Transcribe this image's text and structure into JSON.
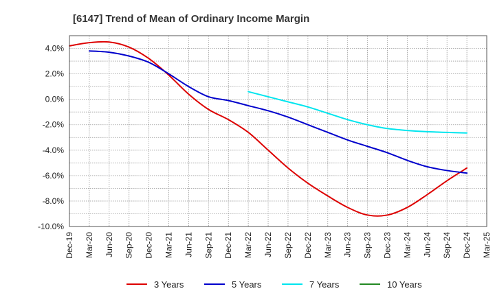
{
  "chart_data": {
    "type": "line",
    "title": "[6147]  Trend of Mean of Ordinary Income Margin",
    "xlabel": "",
    "ylabel": "",
    "x_ticks": [
      "Dec-19",
      "Mar-20",
      "Jun-20",
      "Sep-20",
      "Dec-20",
      "Mar-21",
      "Jun-21",
      "Sep-21",
      "Dec-21",
      "Mar-22",
      "Jun-22",
      "Sep-22",
      "Dec-22",
      "Mar-23",
      "Jun-23",
      "Sep-23",
      "Dec-23",
      "Mar-24",
      "Jun-24",
      "Sep-24",
      "Dec-24",
      "Mar-25"
    ],
    "y_ticks": [
      "4.0%",
      "2.0%",
      "0.0%",
      "-2.0%",
      "-4.0%",
      "-6.0%",
      "-8.0%",
      "-10.0%"
    ],
    "y_tick_values": [
      4,
      2,
      0,
      -2,
      -4,
      -6,
      -8,
      -10
    ],
    "ylim": [
      -10,
      5
    ],
    "grid": true,
    "legend_position": "bottom",
    "series": [
      {
        "name": "3 Years",
        "color": "#dd0000",
        "points": [
          [
            "Dec-19",
            4.2
          ],
          [
            "Mar-20",
            4.45
          ],
          [
            "Jun-20",
            4.5
          ],
          [
            "Sep-20",
            4.1
          ],
          [
            "Dec-20",
            3.2
          ],
          [
            "Mar-21",
            1.9
          ],
          [
            "Jun-21",
            0.4
          ],
          [
            "Sep-21",
            -0.8
          ],
          [
            "Dec-21",
            -1.6
          ],
          [
            "Mar-22",
            -2.6
          ],
          [
            "Jun-22",
            -4.0
          ],
          [
            "Sep-22",
            -5.4
          ],
          [
            "Dec-22",
            -6.6
          ],
          [
            "Mar-23",
            -7.6
          ],
          [
            "Jun-23",
            -8.5
          ],
          [
            "Sep-23",
            -9.1
          ],
          [
            "Dec-23",
            -9.1
          ],
          [
            "Mar-24",
            -8.5
          ],
          [
            "Jun-24",
            -7.5
          ],
          [
            "Sep-24",
            -6.4
          ],
          [
            "Dec-24",
            -5.4
          ]
        ]
      },
      {
        "name": "5 Years",
        "color": "#0000cc",
        "points": [
          [
            "Mar-20",
            3.8
          ],
          [
            "Jun-20",
            3.7
          ],
          [
            "Sep-20",
            3.4
          ],
          [
            "Dec-20",
            2.9
          ],
          [
            "Mar-21",
            2.0
          ],
          [
            "Jun-21",
            1.0
          ],
          [
            "Sep-21",
            0.2
          ],
          [
            "Dec-21",
            -0.1
          ],
          [
            "Mar-22",
            -0.5
          ],
          [
            "Jun-22",
            -0.9
          ],
          [
            "Sep-22",
            -1.4
          ],
          [
            "Dec-22",
            -2.0
          ],
          [
            "Mar-23",
            -2.6
          ],
          [
            "Jun-23",
            -3.2
          ],
          [
            "Sep-23",
            -3.7
          ],
          [
            "Dec-23",
            -4.2
          ],
          [
            "Mar-24",
            -4.8
          ],
          [
            "Jun-24",
            -5.3
          ],
          [
            "Sep-24",
            -5.6
          ],
          [
            "Dec-24",
            -5.8
          ]
        ]
      },
      {
        "name": "7 Years",
        "color": "#00e5ee",
        "points": [
          [
            "Mar-22",
            0.6
          ],
          [
            "Jun-22",
            0.2
          ],
          [
            "Sep-22",
            -0.2
          ],
          [
            "Dec-22",
            -0.6
          ],
          [
            "Mar-23",
            -1.1
          ],
          [
            "Jun-23",
            -1.6
          ],
          [
            "Sep-23",
            -2.0
          ],
          [
            "Dec-23",
            -2.3
          ],
          [
            "Mar-24",
            -2.45
          ],
          [
            "Jun-24",
            -2.55
          ],
          [
            "Sep-24",
            -2.6
          ],
          [
            "Dec-24",
            -2.65
          ]
        ]
      },
      {
        "name": "10 Years",
        "color": "#228822",
        "points": []
      }
    ]
  }
}
